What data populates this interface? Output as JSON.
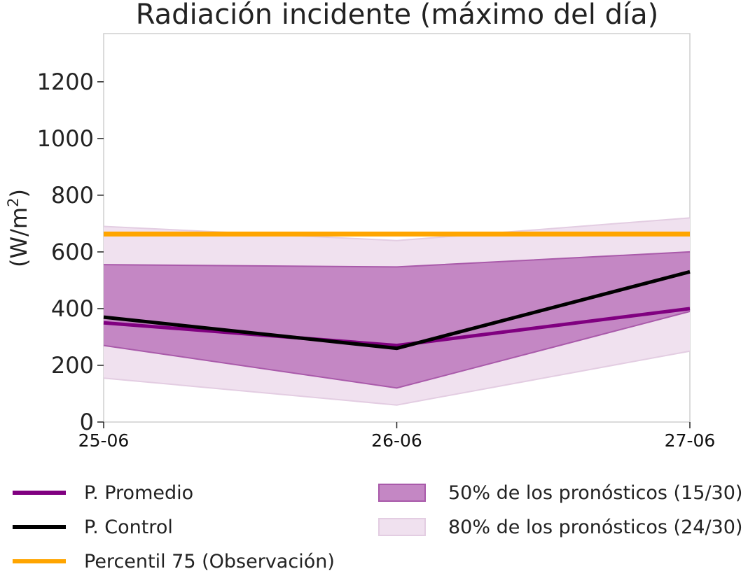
{
  "chart_data": {
    "type": "line",
    "title": "Radiación incidente (máximo del día)",
    "ylabel": "(W/m",
    "ylabel_sup": "2",
    "ylabel_close": ")",
    "categories": [
      "25-06",
      "26-06",
      "27-06"
    ],
    "ylim": [
      0,
      1370
    ],
    "yticks": [
      0,
      200,
      400,
      600,
      800,
      1000,
      1200
    ],
    "series": [
      {
        "name": "P. Promedio",
        "values": [
          350,
          270,
          400
        ],
        "color": "#800080"
      },
      {
        "name": "P. Control",
        "values": [
          370,
          260,
          530
        ],
        "color": "#000000"
      },
      {
        "name": "Percentil 75 (Observación)",
        "values": [
          663,
          663,
          663
        ],
        "color": "#FFA500"
      }
    ],
    "bands": [
      {
        "name": "80% de los pronósticos (24/30)",
        "lower": [
          155,
          60,
          250
        ],
        "upper": [
          690,
          640,
          720
        ],
        "fill": "#f0e1ef",
        "stroke": "#e3cde2"
      },
      {
        "name": "50% de los pronósticos (15/30)",
        "lower": [
          270,
          120,
          390
        ],
        "upper": [
          555,
          547,
          600
        ],
        "fill": "#c487c4",
        "stroke": "#a95aaa"
      }
    ],
    "grid": false,
    "legend_position": "bottom"
  }
}
